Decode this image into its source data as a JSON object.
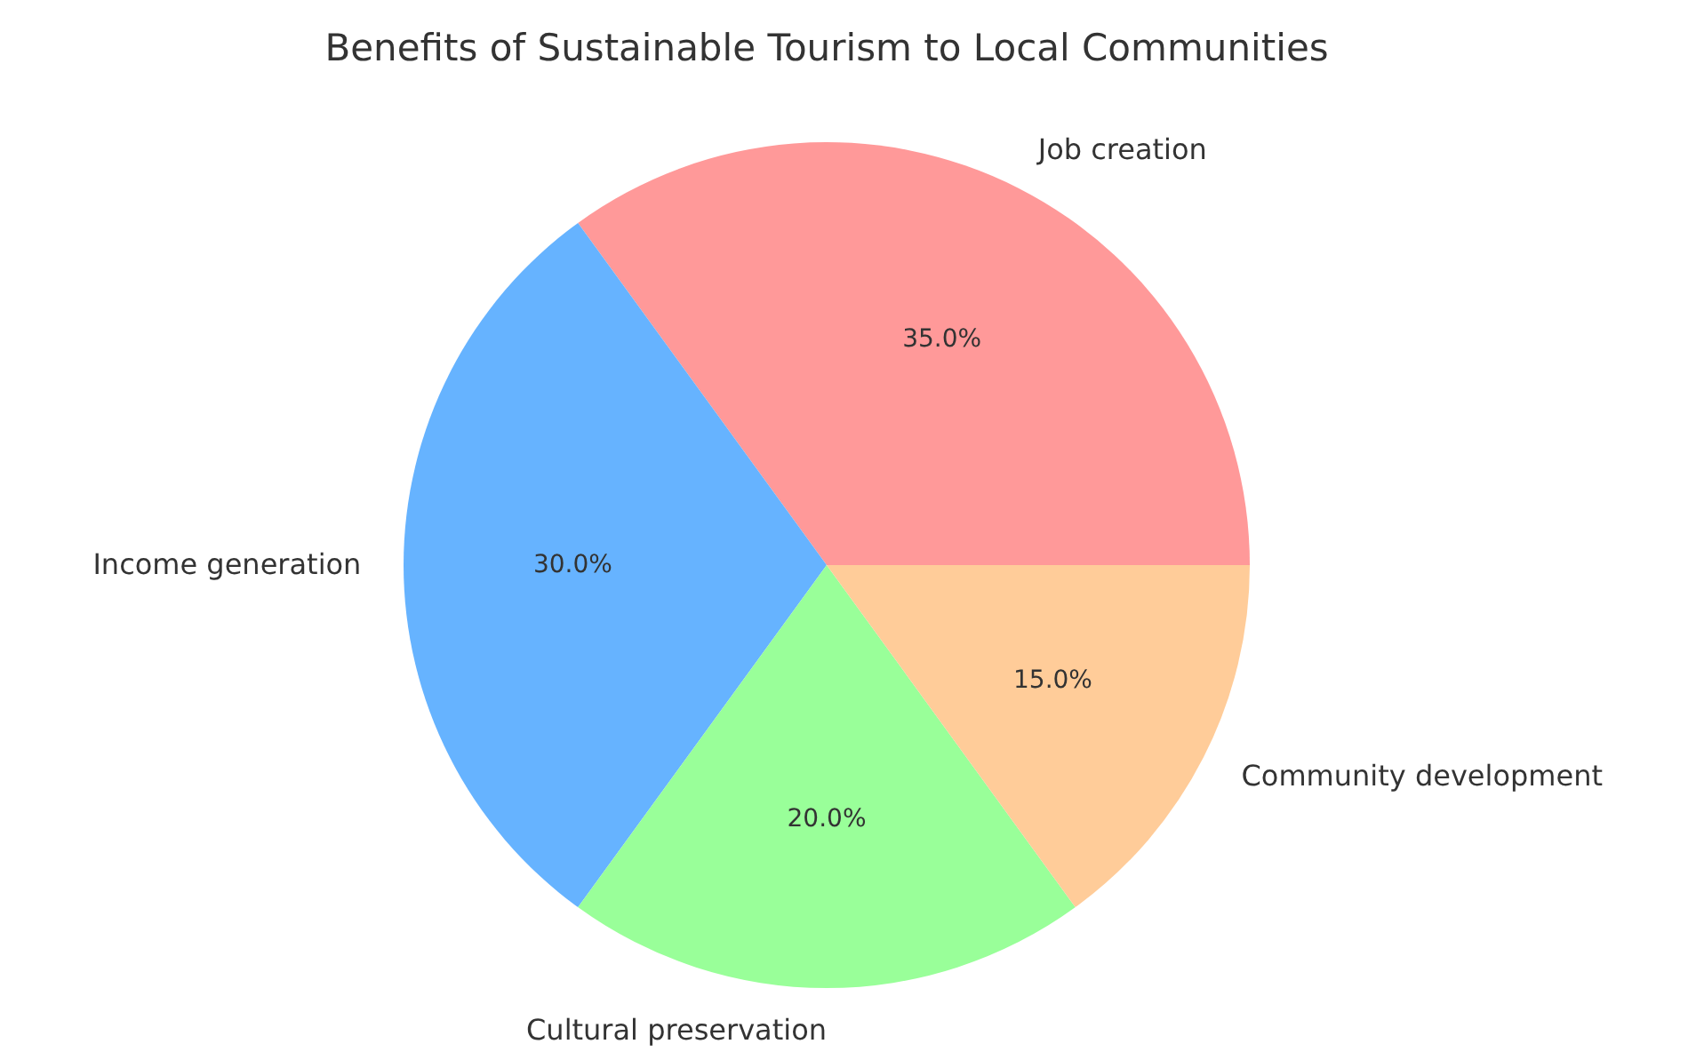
{
  "chart_data": {
    "type": "pie",
    "title": "Benefits of Sustainable Tourism to Local Communities",
    "categories": [
      "Job creation",
      "Income generation",
      "Cultural preservation",
      "Community development"
    ],
    "values": [
      35,
      30,
      20,
      15
    ],
    "colors": [
      "#ff9999",
      "#66b3ff",
      "#99ff99",
      "#ffcc99"
    ],
    "value_labels": [
      "35.0%",
      "30.0%",
      "20.0%",
      "15.0%"
    ],
    "legend": false
  }
}
